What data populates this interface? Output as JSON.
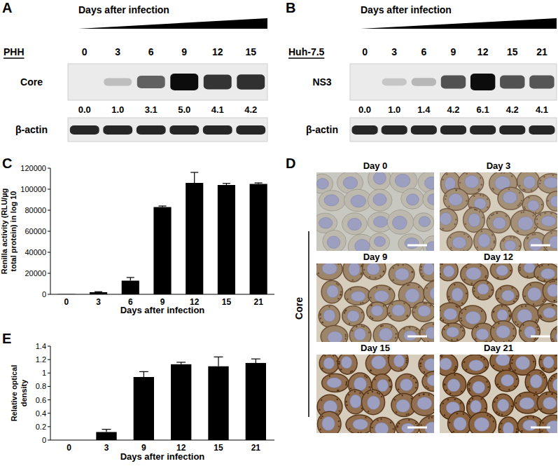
{
  "panel_labels": [
    "A",
    "B",
    "C",
    "D",
    "E"
  ],
  "blots": [
    {
      "header": "Days after infection",
      "cell_type": "PHH",
      "lanes": [
        0,
        3,
        6,
        9,
        12,
        15
      ],
      "protein": "Core",
      "values": [
        0,
        1,
        3.1,
        5,
        4.1,
        4.2
      ],
      "value_labels": [
        "0.0",
        "1.0",
        "3.1",
        "5.0",
        "4.1",
        "4.2"
      ],
      "loading_control": "β-actin"
    },
    {
      "header": "Days after infection",
      "cell_type": "Huh-7.5",
      "lanes": [
        0,
        3,
        6,
        9,
        12,
        15,
        21
      ],
      "protein": "NS3",
      "values": [
        0,
        1,
        1.4,
        4.2,
        6.1,
        4.2,
        4.1
      ],
      "value_labels": [
        "0.0",
        "1.0",
        "1.4",
        "4.2",
        "6.1",
        "4.2",
        "4.1"
      ],
      "loading_control": "β-actin"
    }
  ],
  "images": {
    "stain": "Core",
    "panels": [
      "Day 0",
      "Day 3",
      "Day 9",
      "Day 12",
      "Day 15",
      "Day 21"
    ]
  },
  "chart_data": [
    {
      "type": "bar",
      "x_label": "Days after infection",
      "y_label": [
        "Renilla activity (RLU/µg",
        "total protein) in log 10"
      ],
      "categories": [
        0,
        3,
        6,
        9,
        12,
        15,
        21
      ],
      "values": [
        200,
        2000,
        13000,
        83000,
        106000,
        104000,
        105000
      ],
      "errors": [
        0,
        500,
        3000,
        1000,
        10000,
        1500,
        1000
      ],
      "color": "#000000",
      "ylim": [
        0,
        120000
      ],
      "yticks": [
        0,
        20000,
        40000,
        60000,
        80000,
        100000,
        120000
      ],
      "grid": false
    },
    {
      "type": "bar",
      "x_label": "Days after infection",
      "y_label": [
        "Relative optical",
        "density"
      ],
      "categories": [
        0,
        3,
        9,
        12,
        15,
        21
      ],
      "values": [
        0,
        0.12,
        0.94,
        1.13,
        1.1,
        1.15
      ],
      "errors": [
        0,
        0.04,
        0.08,
        0.03,
        0.14,
        0.06
      ],
      "color": "#000000",
      "ylim": [
        0,
        1.4
      ],
      "yticks": [
        0,
        0.2,
        0.4,
        0.6,
        0.8,
        1,
        1.2,
        1.4
      ],
      "grid": false
    }
  ]
}
